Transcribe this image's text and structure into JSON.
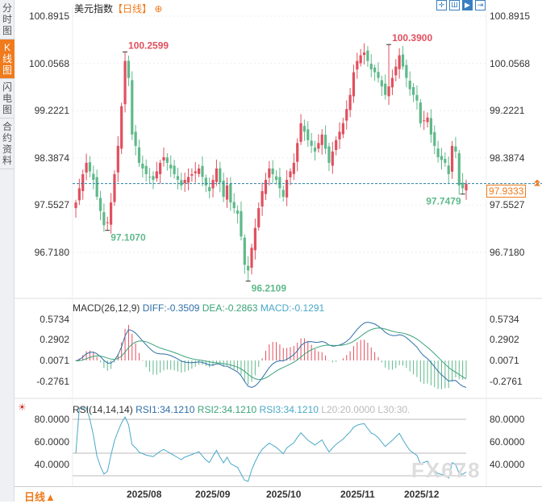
{
  "sidebar": {
    "tabs": [
      {
        "label": "分时图",
        "active": false
      },
      {
        "label": "K线图",
        "active": true
      },
      {
        "label": "闪电图",
        "active": false
      },
      {
        "label": "合约资料",
        "active": false
      }
    ]
  },
  "header": {
    "instrument": "美元指数",
    "period": "【日线】",
    "zoom_icon": "plus-circle-icon",
    "tools": [
      "crosshair-icon",
      "bars-icon",
      "play-icon",
      "exit-icon"
    ]
  },
  "price_axis": {
    "labels": [
      "100.8915",
      "100.0568",
      "99.2221",
      "98.3874",
      "97.5527",
      "96.7180"
    ],
    "values": [
      100.8915,
      100.0568,
      99.2221,
      98.3874,
      97.5527,
      96.718
    ]
  },
  "current_price": "97.9333",
  "colors": {
    "up": "#e0505e",
    "down": "#5fb98a",
    "accent": "#f07b1d",
    "diff": "#2f6fa8",
    "dea": "#3aa37a",
    "rsi": "#4aa8c8"
  },
  "chart_data": {
    "type": "candlestick",
    "title": "美元指数 日线",
    "closes": [
      97.6,
      97.85,
      98.1,
      98.3,
      98.15,
      98.0,
      97.7,
      97.45,
      97.2,
      97.25,
      97.6,
      98.1,
      98.6,
      99.3,
      100.1,
      99.8,
      98.8,
      98.6,
      98.3,
      98.2,
      98.1,
      98.05,
      98.0,
      98.15,
      98.3,
      98.4,
      98.3,
      98.2,
      98.1,
      98.0,
      97.9,
      98.0,
      98.05,
      98.1,
      98.15,
      98.2,
      98.05,
      97.9,
      97.8,
      98.0,
      98.2,
      97.95,
      97.7,
      97.9,
      97.6,
      97.5,
      97.4,
      97.0,
      96.5,
      96.4,
      96.8,
      97.15,
      97.5,
      97.8,
      98.0,
      98.2,
      98.1,
      98.0,
      97.85,
      97.7,
      98.0,
      98.15,
      98.3,
      98.65,
      99.0,
      98.85,
      98.7,
      98.6,
      98.5,
      98.65,
      98.8,
      98.55,
      98.3,
      98.5,
      98.7,
      98.85,
      99.0,
      99.25,
      99.5,
      99.9,
      100.1,
      100.2,
      100.25,
      100.1,
      99.95,
      99.9,
      99.8,
      99.65,
      99.5,
      99.65,
      99.8,
      100.0,
      100.2,
      100.0,
      99.8,
      99.6,
      99.5,
      99.4,
      99.0,
      99.05,
      99.1,
      98.8,
      98.6,
      98.4,
      98.35,
      98.3,
      98.1,
      98.6,
      98.5,
      97.9,
      97.85,
      97.93
    ],
    "annotations": [
      {
        "index": 14,
        "kind": "high",
        "label": "100.2599",
        "value": 100.2599
      },
      {
        "index": 9,
        "kind": "low",
        "label": "97.1070",
        "value": 97.107
      },
      {
        "index": 49,
        "kind": "low",
        "label": "96.2109",
        "value": 96.2109
      },
      {
        "index": 89,
        "kind": "high",
        "label": "100.3900",
        "value": 100.39
      },
      {
        "index": 110,
        "kind": "low",
        "label": "97.7479",
        "value": 97.7479
      }
    ],
    "ylim": [
      96.718,
      100.8915
    ],
    "x_ticks": [
      "2025/08",
      "2025/09",
      "2025/10",
      "2025/11",
      "2025/12"
    ]
  },
  "macd": {
    "title": "MACD(26,12,9)",
    "diff": "DIFF:-0.3509",
    "dea": "DEA:-0.2863",
    "macd": "MACD:-0.1291",
    "labels": [
      "0.5734",
      "0.2902",
      "0.0071",
      "-0.2761"
    ],
    "values": [
      0.5734,
      0.2902,
      0.0071,
      -0.2761
    ]
  },
  "rsi": {
    "title": "RSI(14,14,14)",
    "rsi1": "RSI1:34.1210",
    "rsi2": "RSI2:34.1210",
    "rsi3": "RSI3:34.1210",
    "l20": "L20:20.0000",
    "l30": "L30:30.",
    "labels": [
      "80.0000",
      "60.0000",
      "40.0000"
    ],
    "values": [
      80,
      60,
      40
    ]
  },
  "footer": {
    "period": "日线▲"
  },
  "watermark": "FX678"
}
